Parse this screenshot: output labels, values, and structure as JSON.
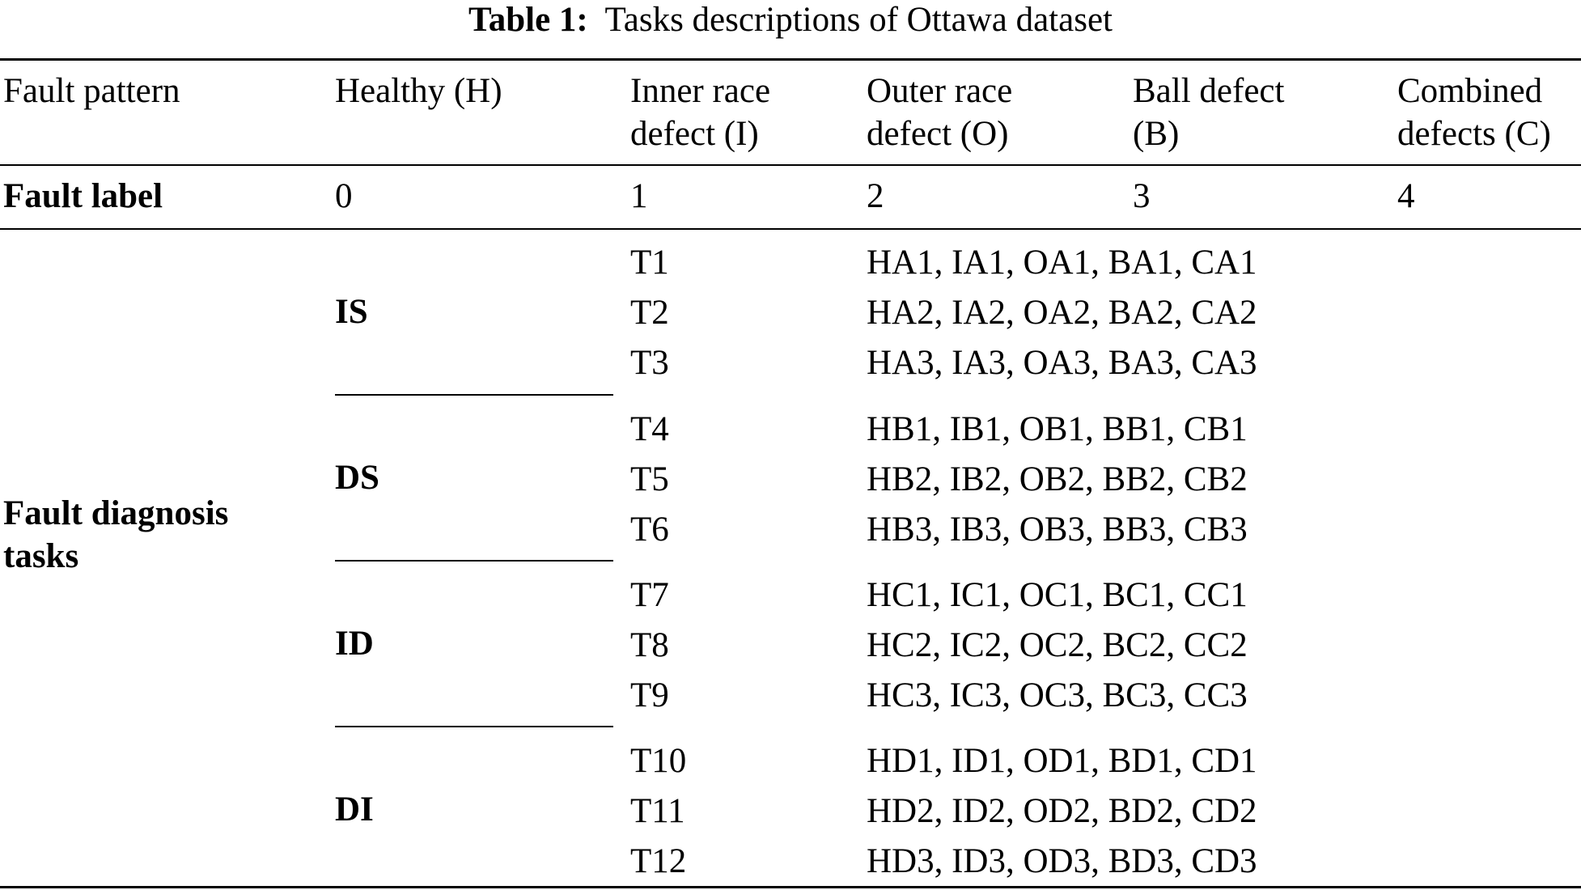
{
  "caption": {
    "label": "Table 1:",
    "text": "Tasks descriptions of Ottawa dataset"
  },
  "header": {
    "c0": "Fault pattern",
    "c1": "Healthy (H)",
    "c2_line1": "Inner race",
    "c2_line2": "defect (I)",
    "c3_line1": "Outer race",
    "c3_line2": "defect (O)",
    "c4_line1": "Ball defect",
    "c4_line2": "(B)",
    "c5_line1": "Combined",
    "c5_line2": "defects (C)"
  },
  "label_row": {
    "title": "Fault label",
    "values": [
      "0",
      "1",
      "2",
      "3",
      "4"
    ]
  },
  "tasks_section": {
    "title_line1": "Fault diagnosis",
    "title_line2": "tasks",
    "groups": [
      {
        "name": "IS",
        "tasks": [
          {
            "id": "T1",
            "data": "HA1, IA1, OA1, BA1, CA1"
          },
          {
            "id": "T2",
            "data": "HA2, IA2, OA2, BA2, CA2"
          },
          {
            "id": "T3",
            "data": "HA3, IA3, OA3, BA3, CA3"
          }
        ]
      },
      {
        "name": "DS",
        "tasks": [
          {
            "id": "T4",
            "data": "HB1, IB1, OB1, BB1, CB1"
          },
          {
            "id": "T5",
            "data": "HB2, IB2, OB2, BB2, CB2"
          },
          {
            "id": "T6",
            "data": "HB3, IB3, OB3, BB3, CB3"
          }
        ]
      },
      {
        "name": "ID",
        "tasks": [
          {
            "id": "T7",
            "data": "HC1, IC1, OC1, BC1, CC1"
          },
          {
            "id": "T8",
            "data": "HC2, IC2, OC2, BC2, CC2"
          },
          {
            "id": "T9",
            "data": "HC3, IC3, OC3, BC3, CC3"
          }
        ]
      },
      {
        "name": "DI",
        "tasks": [
          {
            "id": "T10",
            "data": "HD1, ID1, OD1, BD1, CD1"
          },
          {
            "id": "T11",
            "data": "HD2, ID2, OD2, BD2, CD2"
          },
          {
            "id": "T12",
            "data": "HD3, ID3, OD3, BD3, CD3"
          }
        ]
      }
    ]
  }
}
